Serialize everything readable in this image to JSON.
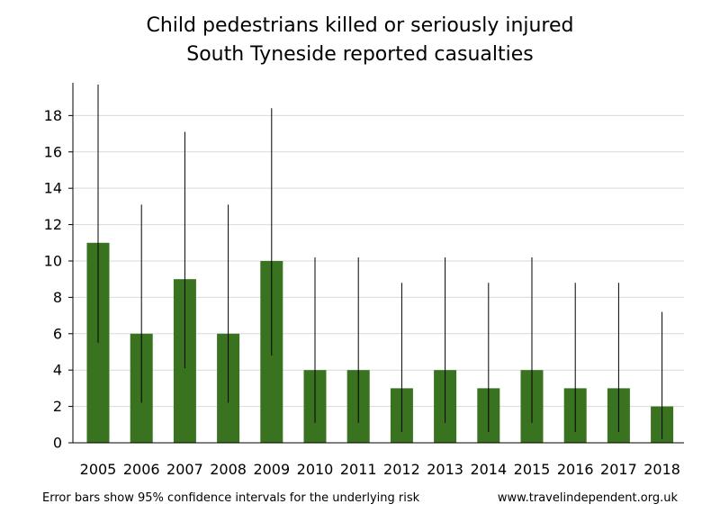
{
  "chart_data": {
    "type": "bar",
    "title": "Child pedestrians killed or seriously injured",
    "subtitle": "South Tyneside reported casualties",
    "xlabel": "",
    "ylabel": "",
    "categories": [
      "2005",
      "2006",
      "2007",
      "2008",
      "2009",
      "2010",
      "2011",
      "2012",
      "2013",
      "2014",
      "2015",
      "2016",
      "2017",
      "2018"
    ],
    "values": [
      11,
      6,
      9,
      6,
      10,
      4,
      4,
      3,
      4,
      3,
      4,
      3,
      3,
      2
    ],
    "error_low": [
      5.5,
      2.2,
      4.1,
      2.2,
      4.8,
      1.1,
      1.1,
      0.6,
      1.1,
      0.6,
      1.1,
      0.6,
      0.6,
      0.2
    ],
    "error_high": [
      19.7,
      13.1,
      17.1,
      13.1,
      18.4,
      10.2,
      10.2,
      8.8,
      10.2,
      8.8,
      10.2,
      8.8,
      8.8,
      7.2
    ],
    "ylim": [
      0,
      19.8
    ],
    "yticks": [
      0,
      2,
      4,
      6,
      8,
      10,
      12,
      14,
      16,
      18
    ],
    "grid": true,
    "legend": "none",
    "bar_color": "#3a7320",
    "grid_color": "#d9d9d9"
  },
  "footer": {
    "note": "Error bars show 95% confidence intervals for the underlying risk",
    "source": "www.travelindependent.org.uk"
  }
}
